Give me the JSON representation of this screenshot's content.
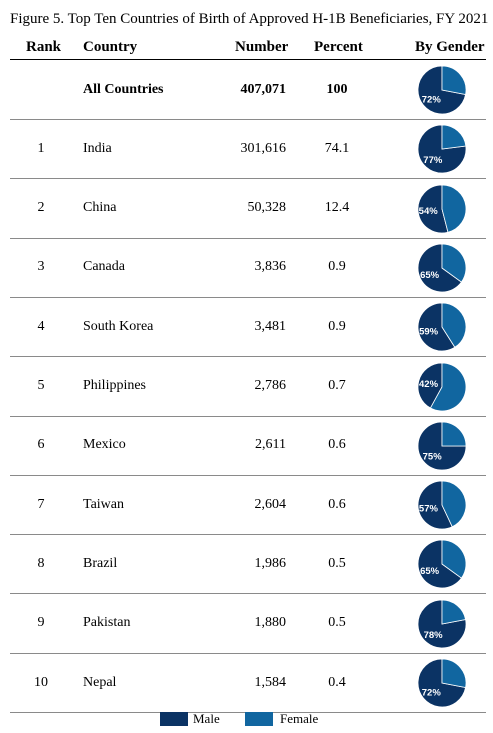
{
  "title": "Figure 5. Top Ten Countries of Birth of Approved H-1B Beneficiaries, FY 2021",
  "headers": {
    "rank": "Rank",
    "country": "Country",
    "number": "Number",
    "percent": "Percent",
    "gender": "By Gender"
  },
  "legend": {
    "male": "Male",
    "female": "Female"
  },
  "colors": {
    "male": "#0b3364",
    "female": "#1166a0",
    "slice_border": "#ffffff"
  },
  "chart_data": {
    "type": "table",
    "columns": [
      "Rank",
      "Country",
      "Number",
      "Percent",
      "By Gender"
    ],
    "series": [
      {
        "name": "Male"
      },
      {
        "name": "Female"
      }
    ],
    "rows": [
      {
        "rank": "",
        "country": "All Countries",
        "number": "407,071",
        "percent": "100",
        "male_pct": 72,
        "male_label": "72%",
        "total": true
      },
      {
        "rank": "1",
        "country": "India",
        "number": "301,616",
        "percent": "74.1",
        "male_pct": 77,
        "male_label": "77%"
      },
      {
        "rank": "2",
        "country": "China",
        "number": "50,328",
        "percent": "12.4",
        "male_pct": 54,
        "male_label": "54%"
      },
      {
        "rank": "3",
        "country": "Canada",
        "number": "3,836",
        "percent": "0.9",
        "male_pct": 65,
        "male_label": "65%"
      },
      {
        "rank": "4",
        "country": "South Korea",
        "number": "3,481",
        "percent": "0.9",
        "male_pct": 59,
        "male_label": "59%"
      },
      {
        "rank": "5",
        "country": "Philippines",
        "number": "2,786",
        "percent": "0.7",
        "male_pct": 42,
        "male_label": "42%"
      },
      {
        "rank": "6",
        "country": "Mexico",
        "number": "2,611",
        "percent": "0.6",
        "male_pct": 75,
        "male_label": "75%"
      },
      {
        "rank": "7",
        "country": "Taiwan",
        "number": "2,604",
        "percent": "0.6",
        "male_pct": 57,
        "male_label": "57%"
      },
      {
        "rank": "8",
        "country": "Brazil",
        "number": "1,986",
        "percent": "0.5",
        "male_pct": 65,
        "male_label": "65%"
      },
      {
        "rank": "9",
        "country": "Pakistan",
        "number": "1,880",
        "percent": "0.5",
        "male_pct": 78,
        "male_label": "78%"
      },
      {
        "rank": "10",
        "country": "Nepal",
        "number": "1,584",
        "percent": "0.4",
        "male_pct": 72,
        "male_label": "72%"
      }
    ]
  }
}
